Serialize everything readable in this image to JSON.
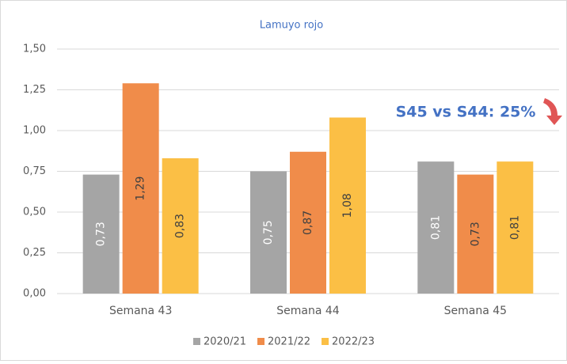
{
  "chart_data": {
    "type": "bar",
    "title": "Lamuyo rojo",
    "categories": [
      "Semana 43",
      "Semana 44",
      "Semana 45"
    ],
    "series": [
      {
        "name": "2020/21",
        "color": "#a5a5a5",
        "values": [
          0.73,
          0.75,
          0.81
        ],
        "value_labels": [
          "0,73",
          "0,75",
          "0,81"
        ]
      },
      {
        "name": "2021/22",
        "color": "#f08c4a",
        "values": [
          1.29,
          0.87,
          0.73
        ],
        "value_labels": [
          "1,29",
          "0,87",
          "0,73"
        ]
      },
      {
        "name": "2022/23",
        "color": "#fbbf45",
        "values": [
          0.83,
          1.08,
          0.81
        ],
        "value_labels": [
          "0,83",
          "1,08",
          "0,81"
        ]
      }
    ],
    "ylim": [
      0,
      1.5
    ],
    "yticks": [
      {
        "value": 0,
        "label": "0,00"
      },
      {
        "value": 0.25,
        "label": "0,25"
      },
      {
        "value": 0.5,
        "label": "0,50"
      },
      {
        "value": 0.75,
        "label": "0,75"
      },
      {
        "value": 1,
        "label": "1,00"
      },
      {
        "value": 1.25,
        "label": "1,25"
      },
      {
        "value": 1.5,
        "label": "1,50"
      }
    ],
    "grid": true,
    "legend": "bottom",
    "annotation": "S45 vs S44: 25%"
  }
}
